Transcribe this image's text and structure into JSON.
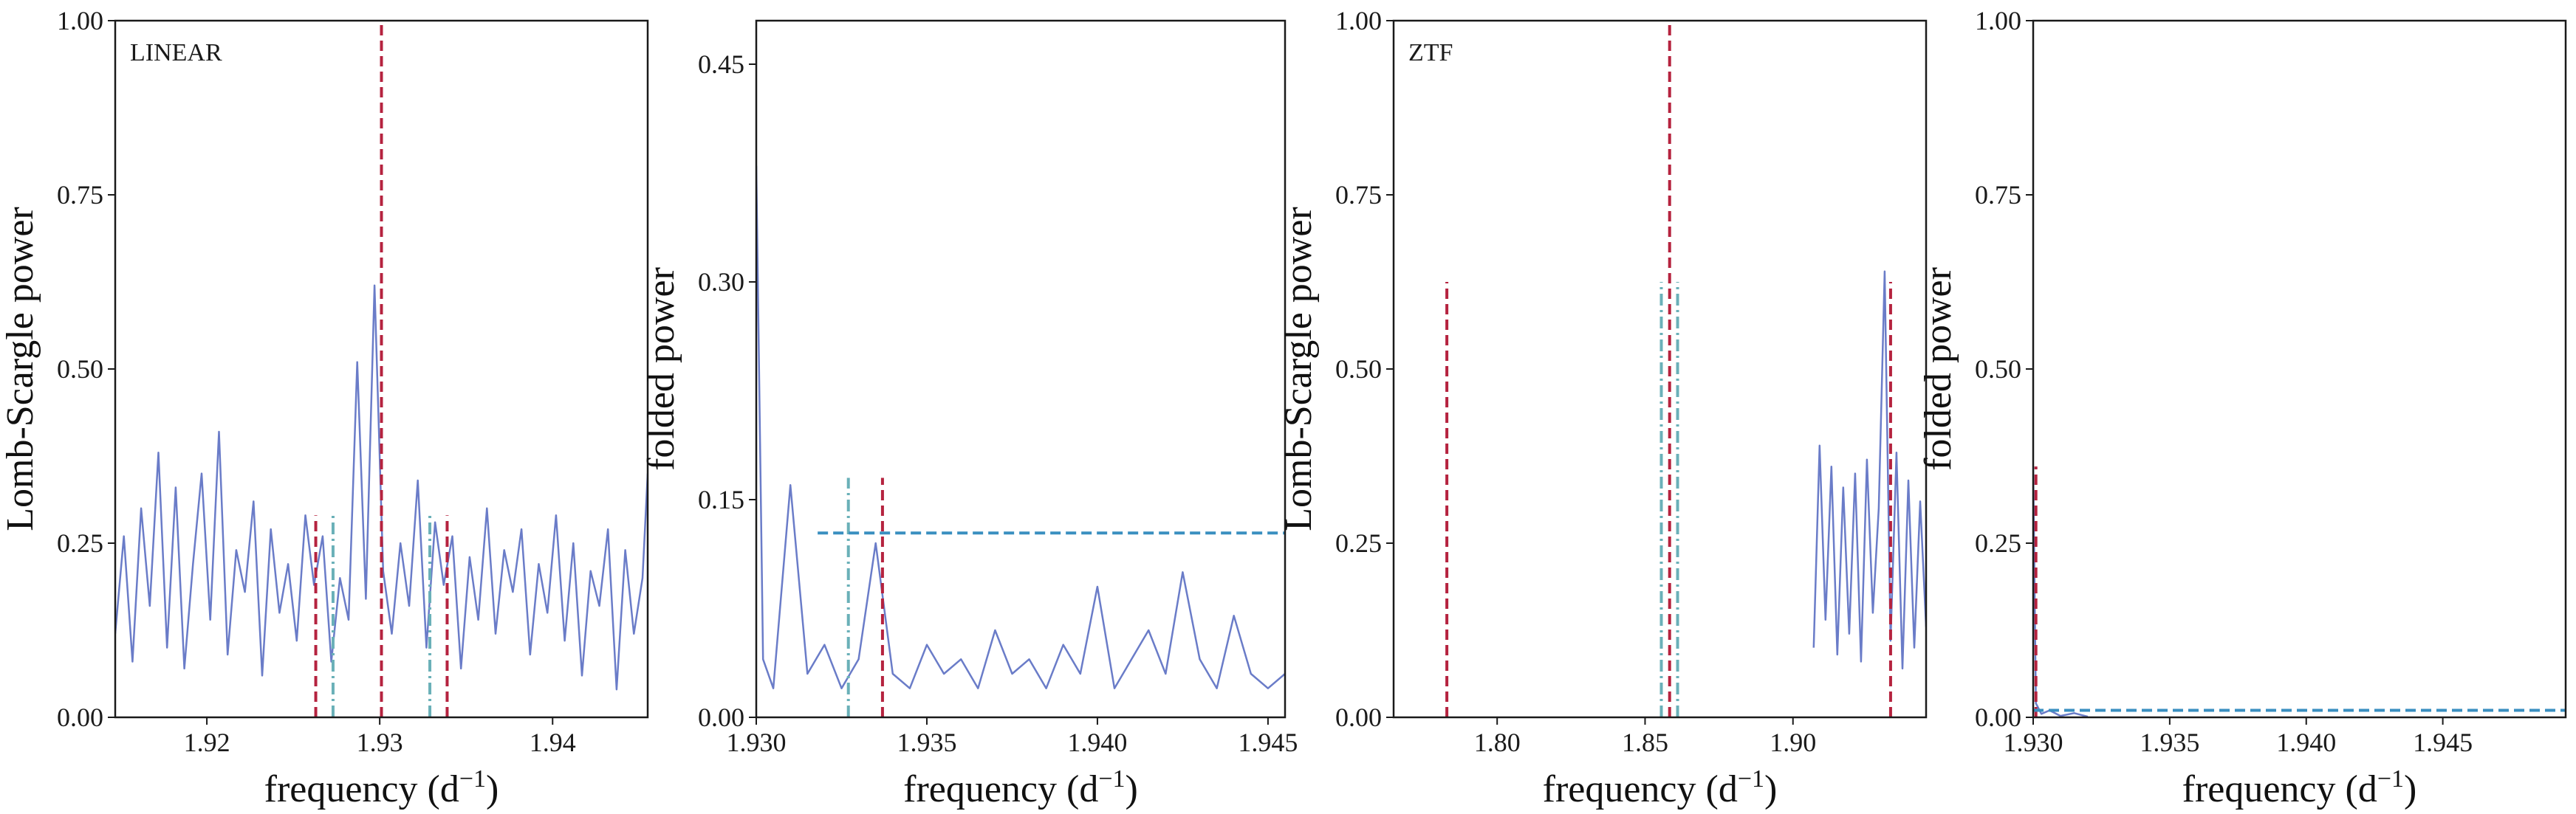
{
  "figure": {
    "colors": {
      "periodogram": "#6a7cc8",
      "red_marker": "#b5233f",
      "teal_marker": "#6ab0b8",
      "blue_threshold": "#3a8fc0"
    }
  },
  "chart_data": [
    {
      "type": "line",
      "panel": "LINEAR periodogram",
      "annotation": "LINEAR",
      "xlabel": "frequency (d",
      "xlabel_sup": "−1",
      "xlabel_tail": ")",
      "ylabel": "Lomb-Scargle power",
      "xlim": [
        1.9147,
        1.9455
      ],
      "ylim": [
        0.0,
        1.0
      ],
      "xticks": [
        1.92,
        1.93,
        1.94
      ],
      "xtick_labels": [
        "1.92",
        "1.93",
        "1.94"
      ],
      "yticks": [
        0.0,
        0.25,
        0.5,
        0.75,
        1.0
      ],
      "ytick_labels": [
        "0.00",
        "0.25",
        "0.50",
        "0.75",
        "1.00"
      ],
      "grid": false,
      "series": [
        {
          "x": [
            1.9147,
            1.9152,
            1.9157,
            1.9162,
            1.9167,
            1.9172,
            1.9177,
            1.9182,
            1.9187,
            1.9192,
            1.9197,
            1.9202,
            1.9207,
            1.9212,
            1.9217,
            1.9222,
            1.9227,
            1.9232,
            1.9237,
            1.9242,
            1.9247,
            1.9252,
            1.9257,
            1.9262,
            1.9267,
            1.9272,
            1.9277,
            1.9282,
            1.9287,
            1.9292,
            1.9297,
            1.9302,
            1.9307,
            1.9312,
            1.9317,
            1.9322,
            1.9327,
            1.9332,
            1.9337,
            1.9342,
            1.9347,
            1.9352,
            1.9357,
            1.9362,
            1.9367,
            1.9372,
            1.9377,
            1.9382,
            1.9387,
            1.9392,
            1.9397,
            1.9402,
            1.9407,
            1.9412,
            1.9417,
            1.9422,
            1.9427,
            1.9432,
            1.9437,
            1.9442,
            1.9447,
            1.9452,
            1.9455
          ],
          "y": [
            0.12,
            0.26,
            0.08,
            0.3,
            0.16,
            0.38,
            0.1,
            0.33,
            0.07,
            0.22,
            0.35,
            0.14,
            0.41,
            0.09,
            0.24,
            0.18,
            0.31,
            0.06,
            0.27,
            0.15,
            0.22,
            0.11,
            0.29,
            0.19,
            0.26,
            0.08,
            0.2,
            0.14,
            0.51,
            0.17,
            0.62,
            0.21,
            0.12,
            0.25,
            0.16,
            0.34,
            0.1,
            0.28,
            0.19,
            0.26,
            0.07,
            0.23,
            0.14,
            0.3,
            0.12,
            0.24,
            0.18,
            0.27,
            0.09,
            0.22,
            0.15,
            0.29,
            0.11,
            0.25,
            0.06,
            0.21,
            0.16,
            0.27,
            0.04,
            0.24,
            0.12,
            0.2,
            0.35
          ]
        }
      ],
      "vlines": [
        {
          "x": 1.9301,
          "ymax": 1.0,
          "style": "dashed",
          "color": "#b5233f"
        },
        {
          "x": 1.9263,
          "ymax": 0.29,
          "style": "dashed",
          "color": "#b5233f"
        },
        {
          "x": 1.9339,
          "ymax": 0.29,
          "style": "dashed",
          "color": "#b5233f"
        },
        {
          "x": 1.9273,
          "ymax": 0.29,
          "style": "dashdot",
          "color": "#6ab0b8"
        },
        {
          "x": 1.9329,
          "ymax": 0.29,
          "style": "dashdot",
          "color": "#6ab0b8"
        }
      ],
      "hlines": []
    },
    {
      "type": "line",
      "panel": "LINEAR folded",
      "annotation": "",
      "xlabel": "frequency (d",
      "xlabel_sup": "−1",
      "xlabel_tail": ")",
      "ylabel": "folded power",
      "xlim": [
        1.93,
        1.9455
      ],
      "ylim": [
        0.0,
        0.48
      ],
      "xticks": [
        1.93,
        1.935,
        1.94,
        1.945
      ],
      "xtick_labels": [
        "1.930",
        "1.935",
        "1.940",
        "1.945"
      ],
      "yticks": [
        0.0,
        0.15,
        0.3,
        0.45
      ],
      "ytick_labels": [
        "0.00",
        "0.15",
        "0.30",
        "0.45"
      ],
      "grid": false,
      "series": [
        {
          "x": [
            1.93,
            1.9302,
            1.9305,
            1.931,
            1.9315,
            1.932,
            1.9325,
            1.933,
            1.9335,
            1.934,
            1.9345,
            1.935,
            1.9355,
            1.936,
            1.9365,
            1.937,
            1.9375,
            1.938,
            1.9385,
            1.939,
            1.9395,
            1.94,
            1.9405,
            1.941,
            1.9415,
            1.942,
            1.9425,
            1.943,
            1.9435,
            1.944,
            1.9445,
            1.945,
            1.9455
          ],
          "y": [
            0.38,
            0.04,
            0.02,
            0.16,
            0.03,
            0.05,
            0.02,
            0.04,
            0.12,
            0.03,
            0.02,
            0.05,
            0.03,
            0.04,
            0.02,
            0.06,
            0.03,
            0.04,
            0.02,
            0.05,
            0.03,
            0.09,
            0.02,
            0.04,
            0.06,
            0.03,
            0.1,
            0.04,
            0.02,
            0.07,
            0.03,
            0.02,
            0.03
          ]
        }
      ],
      "vlines": [
        {
          "x": 1.9337,
          "ymax": 0.165,
          "style": "dashed",
          "color": "#b5233f"
        },
        {
          "x": 1.9327,
          "ymax": 0.165,
          "style": "dashdot",
          "color": "#6ab0b8"
        }
      ],
      "hlines": [
        {
          "y": 0.127,
          "xmin": 1.9318,
          "xmax": 1.9455,
          "style": "dashed",
          "color": "#3a8fc0"
        }
      ]
    },
    {
      "type": "line",
      "panel": "ZTF periodogram",
      "annotation": "ZTF",
      "xlabel": "frequency (d",
      "xlabel_sup": "−1",
      "xlabel_tail": ")",
      "ylabel": "Lomb-Scargle power",
      "xlim": [
        1.765,
        1.945
      ],
      "ylim": [
        0.0,
        1.0
      ],
      "xticks": [
        1.8,
        1.85,
        1.9
      ],
      "xtick_labels": [
        "1.80",
        "1.85",
        "1.90"
      ],
      "yticks": [
        0.0,
        0.25,
        0.5,
        0.75,
        1.0
      ],
      "ytick_labels": [
        "0.00",
        "0.25",
        "0.50",
        "0.75",
        "1.00"
      ],
      "grid": false,
      "series": [
        {
          "x": [
            1.907,
            1.909,
            1.911,
            1.913,
            1.915,
            1.917,
            1.919,
            1.921,
            1.923,
            1.925,
            1.927,
            1.929,
            1.931,
            1.933,
            1.935,
            1.937,
            1.939,
            1.941,
            1.943,
            1.945
          ],
          "y": [
            0.1,
            0.39,
            0.14,
            0.36,
            0.09,
            0.33,
            0.12,
            0.35,
            0.08,
            0.37,
            0.15,
            0.3,
            0.64,
            0.11,
            0.38,
            0.07,
            0.34,
            0.1,
            0.31,
            0.13
          ]
        }
      ],
      "vlines": [
        {
          "x": 1.8583,
          "ymax": 1.0,
          "style": "dashed",
          "color": "#b5233f"
        },
        {
          "x": 1.783,
          "ymax": 0.625,
          "style": "dashed",
          "color": "#b5233f"
        },
        {
          "x": 1.933,
          "ymax": 0.625,
          "style": "dashed",
          "color": "#b5233f"
        },
        {
          "x": 1.8555,
          "ymax": 0.625,
          "style": "dashdot",
          "color": "#6ab0b8"
        },
        {
          "x": 1.861,
          "ymax": 0.625,
          "style": "dashdot",
          "color": "#6ab0b8"
        }
      ],
      "hlines": []
    },
    {
      "type": "line",
      "panel": "ZTF folded",
      "annotation": "",
      "xlabel": "frequency (d",
      "xlabel_sup": "−1",
      "xlabel_tail": ")",
      "ylabel": "folded power",
      "xlim": [
        1.93,
        1.9495
      ],
      "ylim": [
        0.0,
        1.0
      ],
      "xticks": [
        1.93,
        1.935,
        1.94,
        1.945
      ],
      "xtick_labels": [
        "1.930",
        "1.935",
        "1.940",
        "1.945"
      ],
      "yticks": [
        0.0,
        0.25,
        0.5,
        0.75,
        1.0
      ],
      "ytick_labels": [
        "0.00",
        "0.25",
        "0.50",
        "0.75",
        "1.00"
      ],
      "grid": false,
      "series": [
        {
          "x": [
            1.93,
            1.9301,
            1.9303,
            1.9306,
            1.931,
            1.9315,
            1.932
          ],
          "y": [
            0.36,
            0.02,
            0.005,
            0.01,
            0.002,
            0.006,
            0.001
          ]
        }
      ],
      "vlines": [
        {
          "x": 1.9301,
          "ymax": 0.36,
          "style": "dashed",
          "color": "#b5233f"
        }
      ],
      "hlines": [
        {
          "y": 0.01,
          "xmin": 1.93,
          "xmax": 1.9495,
          "style": "dashed",
          "color": "#3a8fc0"
        }
      ]
    }
  ]
}
